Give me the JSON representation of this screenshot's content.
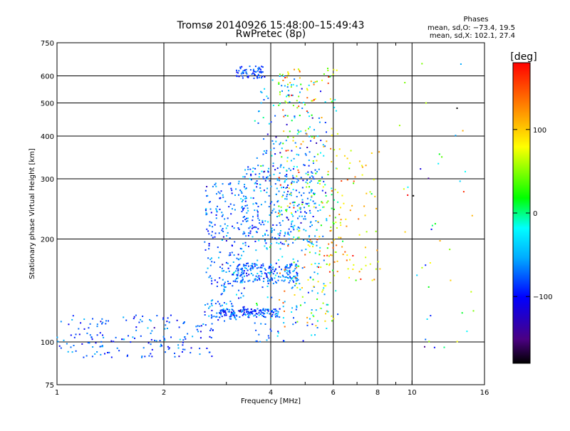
{
  "chart_data": {
    "type": "scatter",
    "title": "Tromsø 20140926 15:48:00–15:49:43",
    "subtitle": "RwPretec (8p)",
    "xlabel": "Frequency [MHz]",
    "ylabel": "Stationary phase Virtual Height [km]",
    "x_scale": "log",
    "y_scale": "log",
    "xlim": [
      1,
      16
    ],
    "ylim": [
      75,
      750
    ],
    "x_ticks": [
      1,
      2,
      4,
      6,
      8,
      10,
      16
    ],
    "x_tick_labels": [
      "1",
      "2",
      "4",
      "6",
      "8",
      "10",
      "16"
    ],
    "x_minor_ticks": [
      3,
      5,
      7,
      9
    ],
    "y_ticks": [
      75,
      100,
      200,
      300,
      400,
      500,
      600,
      750
    ],
    "y_tick_labels": [
      "75",
      "100",
      "200",
      "300",
      "400",
      "500",
      "600",
      "750"
    ],
    "grid": true,
    "colorbar": {
      "label": "[deg]",
      "min": -180,
      "max": 180,
      "ticks": [
        100,
        0,
        -100
      ],
      "tick_labels": [
        "100",
        "0",
        "−100"
      ]
    },
    "stats": {
      "header": "Phases",
      "line_o": "mean, sd,O: −73.4, 19.5",
      "line_x": "mean, sd,X: 102.1, 27.4"
    },
    "traces": [
      {
        "fmin": 1.0,
        "fmax": 2.8,
        "hmin": 90,
        "hmax": 120,
        "n": 180,
        "pmean": -80,
        "psd": 20
      },
      {
        "fmin": 2.6,
        "fmax": 3.4,
        "hmin": 115,
        "hmax": 300,
        "n": 260,
        "pmean": -75,
        "psd": 20
      },
      {
        "fmin": 2.8,
        "fmax": 4.2,
        "hmin": 118,
        "hmax": 125,
        "n": 140,
        "pmean": -80,
        "psd": 18
      },
      {
        "fmin": 3.2,
        "fmax": 4.8,
        "hmin": 148,
        "hmax": 170,
        "n": 170,
        "pmean": -75,
        "psd": 18
      },
      {
        "fmin": 3.3,
        "fmax": 5.4,
        "hmin": 190,
        "hmax": 330,
        "n": 260,
        "pmean": -70,
        "psd": 22
      },
      {
        "fmin": 3.2,
        "fmax": 3.8,
        "hmin": 590,
        "hmax": 640,
        "n": 60,
        "pmean": -85,
        "psd": 12
      },
      {
        "fmin": 3.6,
        "fmax": 5.8,
        "hmin": 100,
        "hmax": 600,
        "n": 320,
        "pmean": -60,
        "psd": 30
      },
      {
        "fmin": 4.2,
        "fmax": 6.2,
        "hmin": 110,
        "hmax": 640,
        "n": 240,
        "pmean": 60,
        "psd": 60
      },
      {
        "fmin": 5.8,
        "fmax": 8.2,
        "hmin": 150,
        "hmax": 370,
        "n": 90,
        "pmean": 90,
        "psd": 40
      },
      {
        "fmin": 9.0,
        "fmax": 15.0,
        "hmin": 90,
        "hmax": 700,
        "n": 45,
        "pmean": 10,
        "psd": 90
      }
    ]
  }
}
